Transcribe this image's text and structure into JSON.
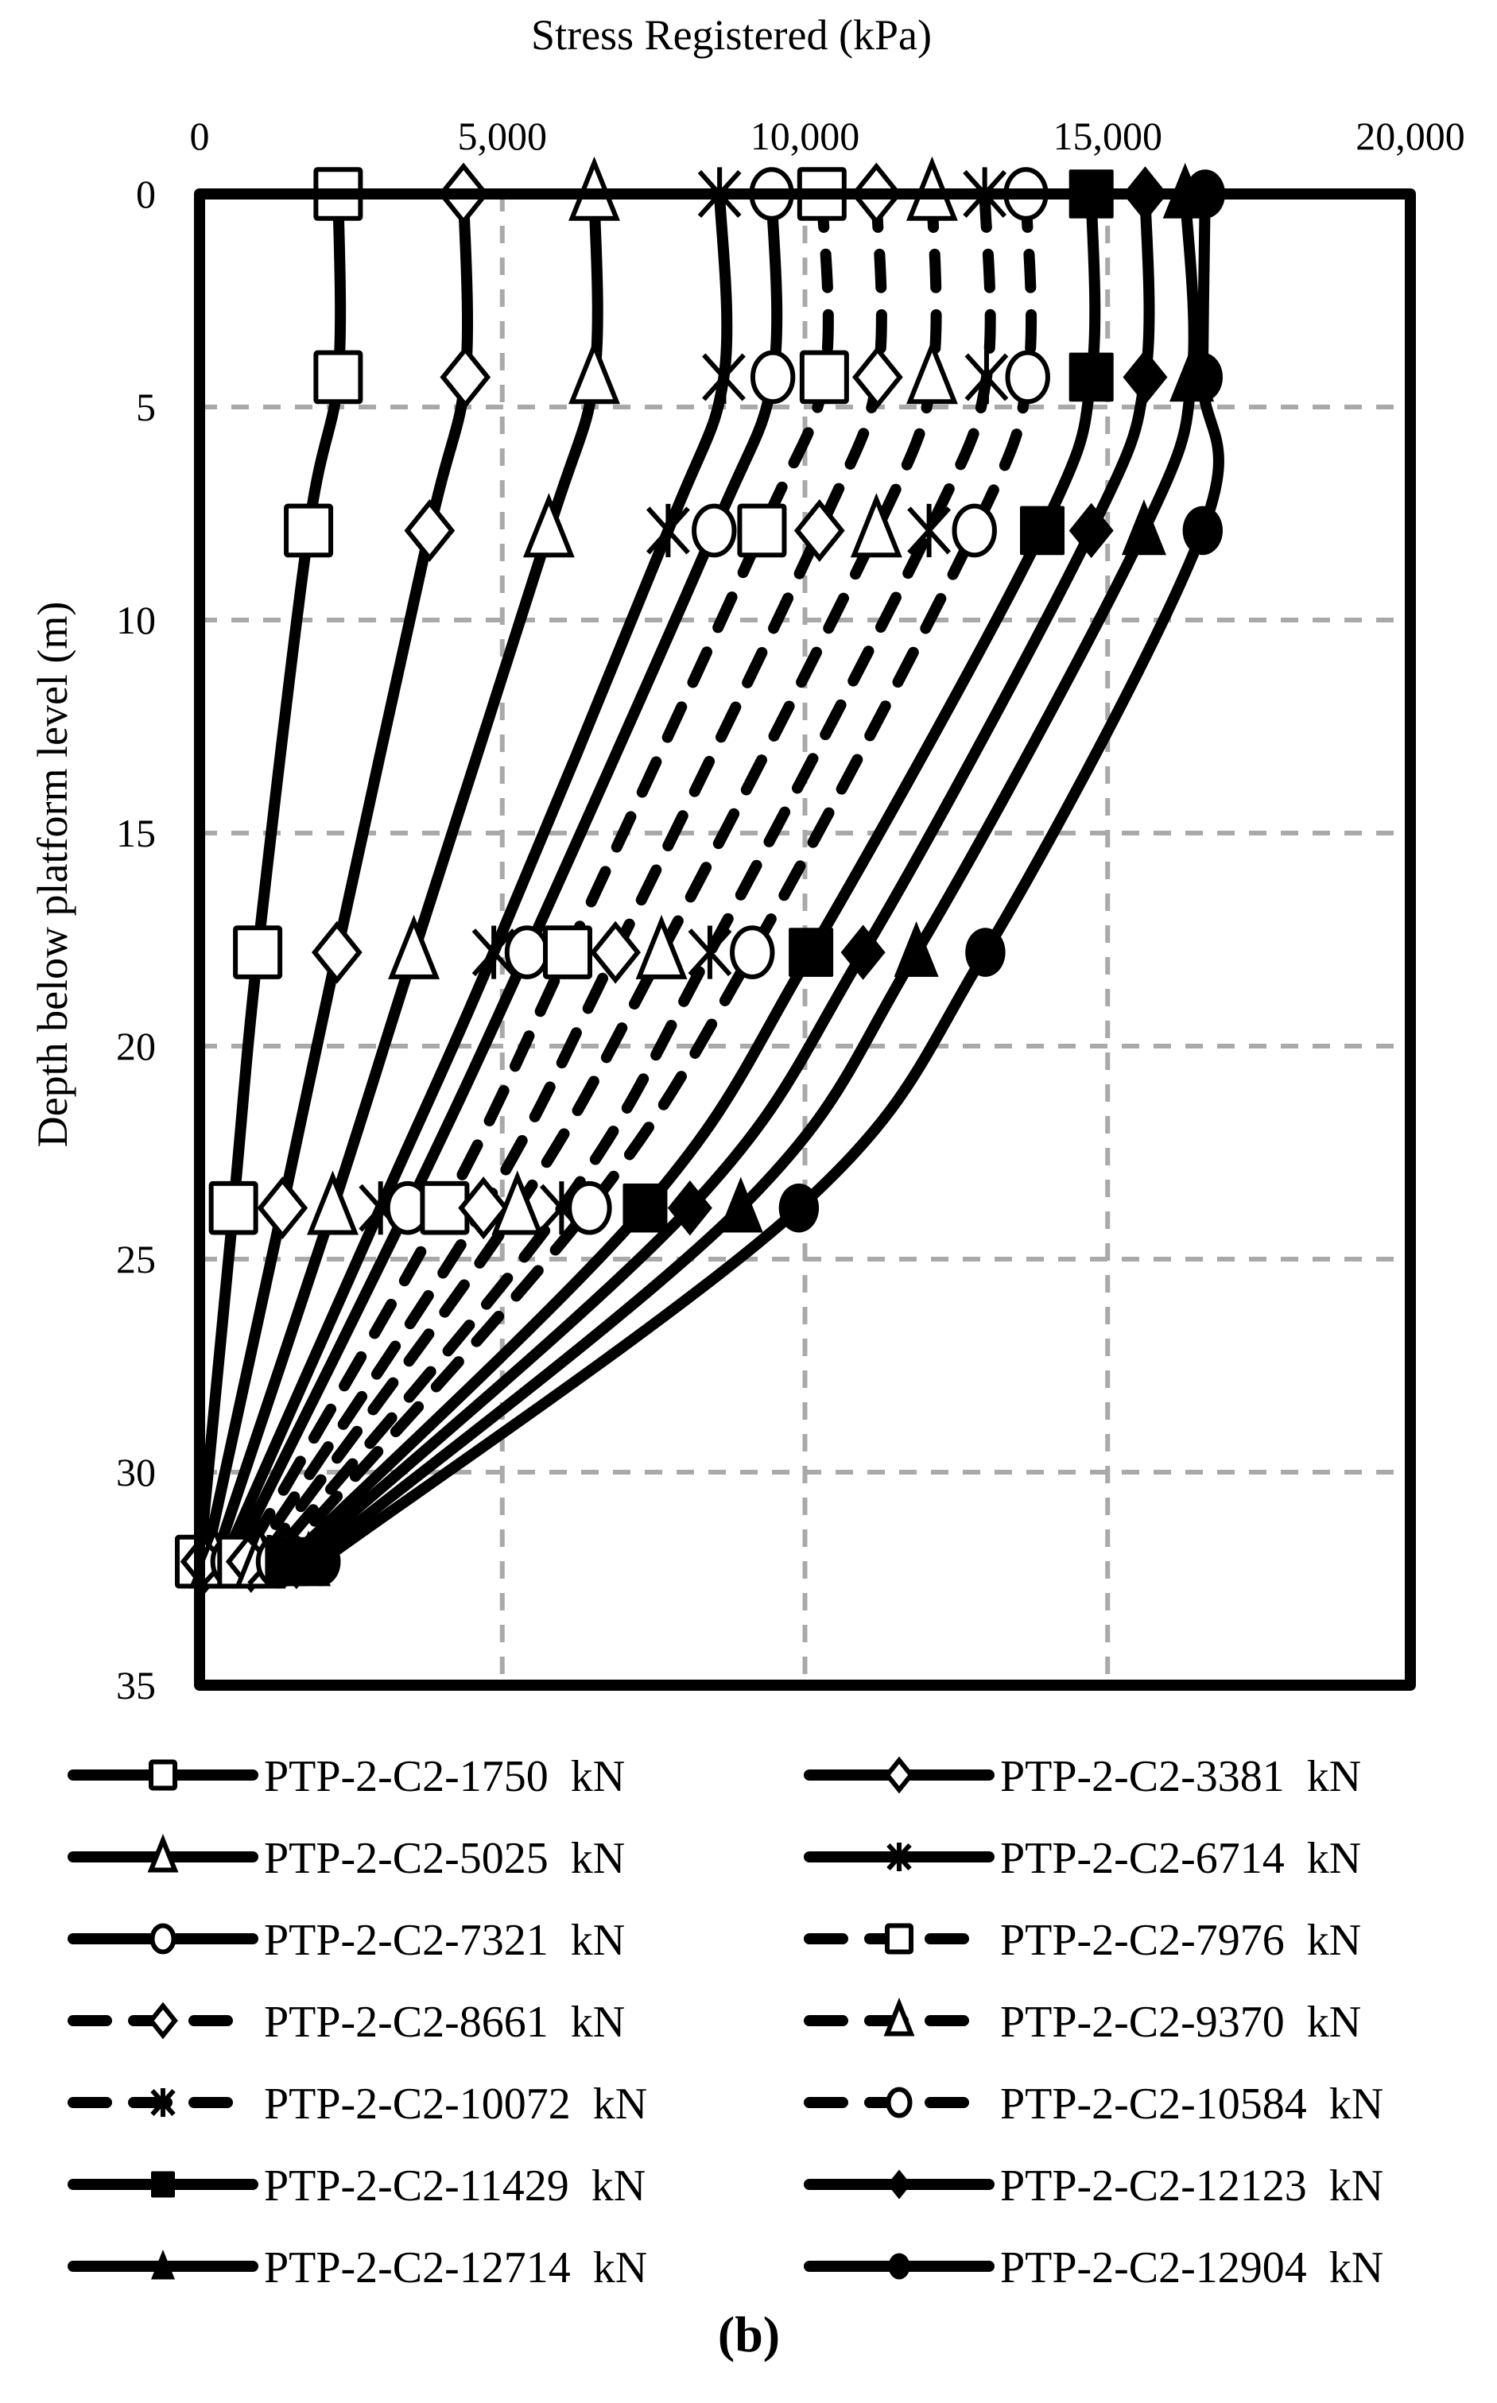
{
  "chart_data": {
    "type": "line",
    "title": "",
    "caption": "(b)",
    "xlabel": "Stress Registered (kPa)",
    "ylabel": "Depth below platform level (m)",
    "xlim": [
      0,
      20000
    ],
    "ylim": [
      35,
      0
    ],
    "x_axis_position": "top",
    "y_inverted": true,
    "x_ticks": [
      0,
      5000,
      10000,
      15000,
      20000
    ],
    "x_tick_labels": [
      "0",
      "5,000",
      "10,000",
      "15,000",
      "20,000"
    ],
    "y_ticks": [
      0,
      5,
      10,
      15,
      20,
      25,
      30,
      35
    ],
    "y_tick_labels": [
      "0",
      "5",
      "10",
      "15",
      "20",
      "25",
      "30",
      "35"
    ],
    "grid": true,
    "grid_style": "dashed-gray",
    "legend_position": "bottom-two-columns",
    "depths": [
      0,
      4.3,
      7.9,
      17.8,
      23.8,
      32.1
    ],
    "series": [
      {
        "name": "PTP-2-C2-1750  kN",
        "marker": "square-open",
        "line": "solid",
        "values": [
          2290,
          2290,
          1800,
          960,
          560,
          0
        ]
      },
      {
        "name": "PTP-2-C2-3381  kN",
        "marker": "diamond-open",
        "line": "solid",
        "values": [
          4360,
          4390,
          3800,
          2270,
          1370,
          100
        ]
      },
      {
        "name": "PTP-2-C2-5025  kN",
        "marker": "triangle-open",
        "line": "solid",
        "values": [
          6520,
          6520,
          5770,
          3540,
          2200,
          250
        ]
      },
      {
        "name": "PTP-2-C2-6714  kN",
        "marker": "asterisk",
        "line": "solid",
        "values": [
          8590,
          8660,
          7740,
          4860,
          2990,
          400
        ]
      },
      {
        "name": "PTP-2-C2-7321  kN",
        "marker": "circle-open",
        "line": "solid",
        "values": [
          9450,
          9470,
          8500,
          5410,
          3440,
          550
        ]
      },
      {
        "name": "PTP-2-C2-7976  kN",
        "marker": "square-open",
        "line": "dashed",
        "values": [
          10280,
          10320,
          9290,
          6080,
          4050,
          700
        ]
      },
      {
        "name": "PTP-2-C2-8661  kN",
        "marker": "diamond-open",
        "line": "dashed",
        "values": [
          11180,
          11200,
          10240,
          6870,
          4690,
          850
        ]
      },
      {
        "name": "PTP-2-C2-9370  kN",
        "marker": "triangle-open",
        "line": "dashed",
        "values": [
          12100,
          12100,
          11180,
          7630,
          5250,
          1000
        ]
      },
      {
        "name": "PTP-2-C2-10072  kN",
        "marker": "asterisk",
        "line": "dashed",
        "values": [
          12970,
          13000,
          12050,
          8430,
          5980,
          1150
        ]
      },
      {
        "name": "PTP-2-C2-10584  kN",
        "marker": "circle-open",
        "line": "dashed",
        "values": [
          13650,
          13680,
          12800,
          9130,
          6440,
          1300
        ]
      },
      {
        "name": "PTP-2-C2-11429  kN",
        "marker": "square-filled",
        "line": "solid",
        "values": [
          14730,
          14730,
          13920,
          10100,
          7360,
          1450
        ]
      },
      {
        "name": "PTP-2-C2-12123  kN",
        "marker": "diamond-filled",
        "line": "solid",
        "values": [
          15620,
          15620,
          14730,
          10960,
          8100,
          1600
        ]
      },
      {
        "name": "PTP-2-C2-12714  kN",
        "marker": "triangle-filled",
        "line": "solid",
        "values": [
          16280,
          16390,
          15600,
          11840,
          8940,
          1800
        ]
      },
      {
        "name": "PTP-2-C2-12904  kN",
        "marker": "circle-filled",
        "line": "solid",
        "values": [
          16610,
          16570,
          16570,
          12980,
          9900,
          2000
        ]
      }
    ]
  },
  "colors": {
    "ink": "#000000",
    "grid": "#a9a9a9",
    "background": "#ffffff"
  }
}
